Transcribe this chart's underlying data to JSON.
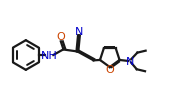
{
  "bg_color": "#ffffff",
  "line_color": "#1a1a1a",
  "bond_lw": 1.6,
  "o_color": "#cc4400",
  "n_color": "#0000cc",
  "font_size": 8,
  "fig_w": 1.86,
  "fig_h": 1.13,
  "dpi": 100,
  "xlim": [
    0,
    9.3
  ],
  "ylim": [
    0,
    5.65
  ]
}
